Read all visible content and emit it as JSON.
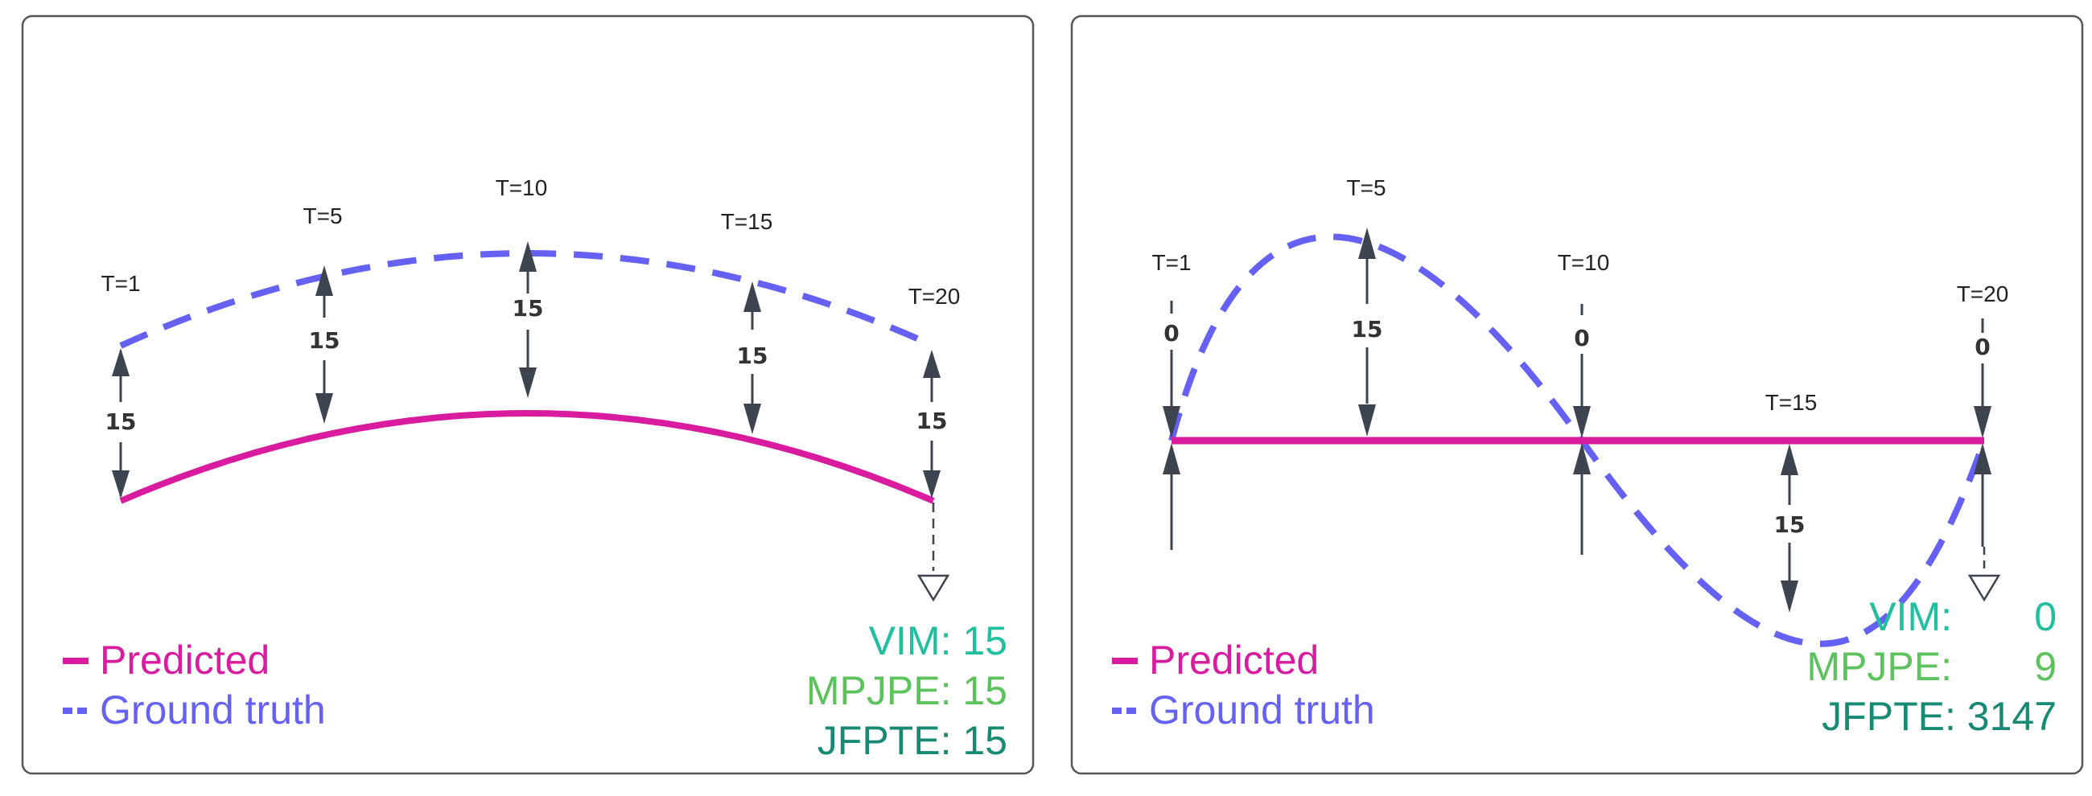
{
  "colors": {
    "predicted": "#d81b9f",
    "ground_truth": "#6461f4",
    "vim": "#1fbfa0",
    "mpjpe": "#5cc35c",
    "jfpte": "#178a74",
    "arrow": "#3d4450",
    "panel_border": "#555555"
  },
  "panels": [
    {
      "time_labels": [
        "T=1",
        "T=5",
        "T=10",
        "T=15",
        "T=20"
      ],
      "distances": [
        "15",
        "15",
        "15",
        "15",
        "15"
      ],
      "legend": {
        "predicted": "Predicted",
        "ground_truth": "Ground truth"
      },
      "metrics": [
        {
          "name": "VIM:",
          "value": "15"
        },
        {
          "name": "MPJPE:",
          "value": "15"
        },
        {
          "name": "JFPTE:",
          "value": "15"
        }
      ]
    },
    {
      "time_labels": [
        "T=1",
        "T=5",
        "T=10",
        "T=15",
        "T=20"
      ],
      "distances": [
        "0",
        "15",
        "0",
        "15",
        "0"
      ],
      "legend": {
        "predicted": "Predicted",
        "ground_truth": "Ground truth"
      },
      "metrics": [
        {
          "name": "VIM:",
          "value": "0"
        },
        {
          "name": "MPJPE:",
          "value": "9"
        },
        {
          "name": "JFPTE:",
          "value": "3147"
        }
      ]
    }
  ]
}
